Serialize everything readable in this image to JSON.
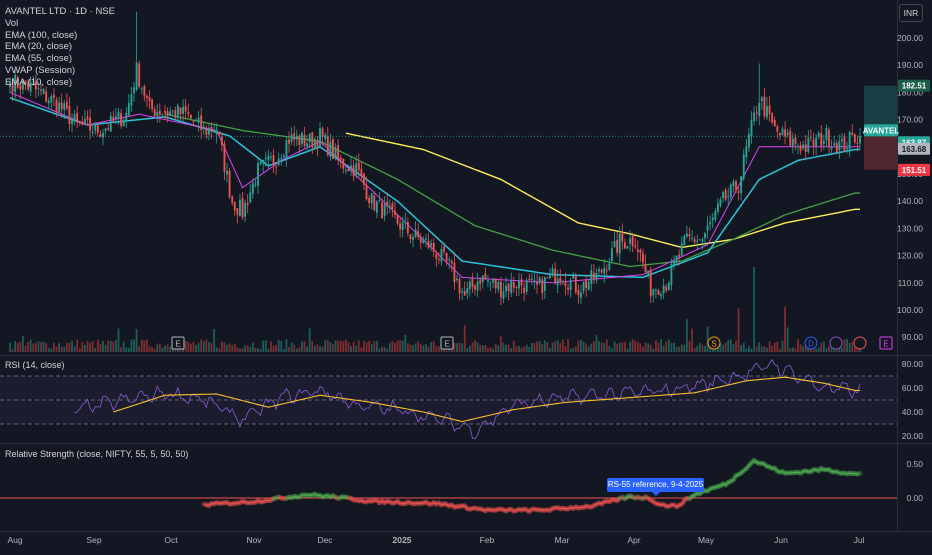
{
  "header": {
    "title": "AVANTEL LTD · 1D · NSE",
    "legend": [
      "Vol",
      "EMA (100, close)",
      "EMA (20, close)",
      "EMA (55, close)",
      "VWAP (Session)",
      "EMA (10, close)"
    ],
    "currency": "INR"
  },
  "rsi": {
    "title": "RSI (14, close)"
  },
  "rs": {
    "title": "Relative Strength (close, NIFTY, 55, 5, 50, 50)",
    "tooltip": "RS-55 reference, 9-4-2025"
  },
  "colors": {
    "background": "#131722",
    "up": "#26a69a",
    "down": "#ef5350",
    "ema10": "#e040fb",
    "ema20": "#26c6da",
    "ema55": "#43a047",
    "ema100": "#ffee58",
    "rsi_line": "#7e57c2",
    "rsi_ma": "#fbc02d",
    "rs_line": "#ef5350",
    "rs_line_positive": "#4caf50",
    "badge_current": "#26a69a",
    "badge_ema20": "#b2b5be",
    "badge_target": "#1b5e4a",
    "badge_stop": "#f23645"
  },
  "chart_data": [
    {
      "type": "candlestick",
      "symbol": "AVANTEL LTD",
      "interval": "1D",
      "exchange": "NSE",
      "x_ticks": [
        "Aug",
        "Sep",
        "Oct",
        "Nov",
        "Dec",
        "2025",
        "Feb",
        "Mar",
        "Apr",
        "May",
        "Jun",
        "Jul"
      ],
      "ylim": [
        85,
        205
      ],
      "y_ticks": [
        "200.00",
        "190.00",
        "180.00",
        "170.00",
        "160.00",
        "150.00",
        "140.00",
        "130.00",
        "120.00",
        "110.00",
        "100.00",
        "90.00"
      ],
      "price_badges": [
        {
          "label": "182.51",
          "kind": "target"
        },
        {
          "label": "AVANTEL",
          "kind": "current"
        },
        {
          "label": "163.87",
          "kind": "current"
        },
        {
          "label": "163.68",
          "kind": "ema20"
        },
        {
          "label": "151.51",
          "kind": "stop"
        }
      ],
      "last_close": 163.87,
      "risk_reward": {
        "entry": 163.87,
        "target": 182.51,
        "stop": 151.51
      },
      "anchors": [
        [
          0,
          184
        ],
        [
          8,
          182
        ],
        [
          18,
          176
        ],
        [
          26,
          168
        ],
        [
          35,
          166
        ],
        [
          45,
          172
        ],
        [
          49,
          188
        ],
        [
          54,
          174
        ],
        [
          60,
          173
        ],
        [
          68,
          172
        ],
        [
          75,
          166
        ],
        [
          80,
          167
        ],
        [
          86,
          140
        ],
        [
          90,
          136
        ],
        [
          96,
          151
        ],
        [
          103,
          156
        ],
        [
          108,
          163
        ],
        [
          116,
          162
        ],
        [
          120,
          164
        ],
        [
          128,
          154
        ],
        [
          134,
          152
        ],
        [
          140,
          140
        ],
        [
          148,
          134
        ],
        [
          155,
          128
        ],
        [
          162,
          124
        ],
        [
          170,
          116
        ],
        [
          176,
          105
        ],
        [
          182,
          112
        ],
        [
          190,
          108
        ],
        [
          196,
          110
        ],
        [
          204,
          108
        ],
        [
          212,
          114
        ],
        [
          220,
          108
        ],
        [
          228,
          113
        ],
        [
          236,
          125
        ],
        [
          242,
          126
        ],
        [
          248,
          108
        ],
        [
          254,
          110
        ],
        [
          262,
          126
        ],
        [
          268,
          126
        ],
        [
          276,
          140
        ],
        [
          282,
          146
        ],
        [
          286,
          163
        ],
        [
          290,
          178
        ],
        [
          296,
          166
        ],
        [
          302,
          162
        ],
        [
          308,
          160
        ],
        [
          316,
          164
        ],
        [
          322,
          160
        ],
        [
          327,
          163.87
        ]
      ],
      "ema_anchors": {
        "ema10": [
          [
            0,
            180
          ],
          [
            30,
            168
          ],
          [
            50,
            172
          ],
          [
            80,
            166
          ],
          [
            90,
            145
          ],
          [
            105,
            155
          ],
          [
            120,
            162
          ],
          [
            150,
            135
          ],
          [
            175,
            112
          ],
          [
            210,
            110
          ],
          [
            245,
            113
          ],
          [
            270,
            124
          ],
          [
            290,
            160
          ],
          [
            305,
            160
          ],
          [
            327,
            160
          ]
        ],
        "ema20": [
          [
            0,
            178
          ],
          [
            30,
            168
          ],
          [
            60,
            171
          ],
          [
            85,
            164
          ],
          [
            100,
            153
          ],
          [
            120,
            160
          ],
          [
            150,
            140
          ],
          [
            175,
            118
          ],
          [
            210,
            113
          ],
          [
            245,
            112
          ],
          [
            270,
            121
          ],
          [
            290,
            148
          ],
          [
            305,
            155
          ],
          [
            327,
            159
          ]
        ],
        "ema55": [
          [
            60,
            172
          ],
          [
            90,
            166
          ],
          [
            120,
            162
          ],
          [
            150,
            148
          ],
          [
            180,
            131
          ],
          [
            210,
            122
          ],
          [
            240,
            116
          ],
          [
            260,
            118
          ],
          [
            280,
            126
          ],
          [
            300,
            135
          ],
          [
            327,
            143
          ]
        ],
        "ema100": [
          [
            130,
            165
          ],
          [
            160,
            159
          ],
          [
            190,
            148
          ],
          [
            220,
            132
          ],
          [
            240,
            128
          ],
          [
            260,
            123
          ],
          [
            280,
            126
          ],
          [
            300,
            132
          ],
          [
            327,
            137
          ]
        ]
      },
      "volume_markers": [
        "E",
        "E",
        "S",
        "D",
        "E"
      ]
    },
    {
      "type": "line",
      "title": "RSI (14, close)",
      "ylim": [
        15,
        90
      ],
      "y_ticks": [
        "80.00",
        "60.00",
        "40.00",
        "20.00"
      ],
      "bands": [
        70,
        50,
        30
      ],
      "series": [
        {
          "name": "RSI",
          "anchors": [
            [
              25,
              42
            ],
            [
              40,
              48
            ],
            [
              60,
              56
            ],
            [
              75,
              50
            ],
            [
              90,
              34
            ],
            [
              105,
              52
            ],
            [
              120,
              58
            ],
            [
              135,
              45
            ],
            [
              150,
              42
            ],
            [
              170,
              32
            ],
            [
              180,
              24
            ],
            [
              195,
              46
            ],
            [
              215,
              52
            ],
            [
              240,
              56
            ],
            [
              255,
              58
            ],
            [
              270,
              64
            ],
            [
              285,
              72
            ],
            [
              295,
              80
            ],
            [
              305,
              70
            ],
            [
              315,
              60
            ],
            [
              327,
              58
            ]
          ]
        },
        {
          "name": "RSI-based MA",
          "anchors": [
            [
              40,
              40
            ],
            [
              60,
              54
            ],
            [
              80,
              55
            ],
            [
              100,
              44
            ],
            [
              120,
              54
            ],
            [
              140,
              48
            ],
            [
              160,
              40
            ],
            [
              175,
              32
            ],
            [
              195,
              42
            ],
            [
              215,
              48
            ],
            [
              240,
              52
            ],
            [
              265,
              56
            ],
            [
              285,
              66
            ],
            [
              300,
              69
            ],
            [
              315,
              64
            ],
            [
              327,
              58
            ]
          ]
        }
      ]
    },
    {
      "type": "line",
      "title": "Relative Strength (close, NIFTY, 55, 5, 50, 50)",
      "ylim": [
        -0.35,
        0.75
      ],
      "y_ticks": [
        "0.50",
        "0.00"
      ],
      "zero_line": 0,
      "series": [
        {
          "name": "RS",
          "anchors": [
            [
              75,
              -0.1
            ],
            [
              95,
              -0.05
            ],
            [
              115,
              0.05
            ],
            [
              125,
              0.02
            ],
            [
              140,
              -0.05
            ],
            [
              165,
              -0.08
            ],
            [
              185,
              -0.18
            ],
            [
              205,
              -0.18
            ],
            [
              225,
              -0.12
            ],
            [
              240,
              0.02
            ],
            [
              247,
              0.0
            ],
            [
              252,
              -0.1
            ],
            [
              258,
              -0.12
            ],
            [
              265,
              0.05
            ],
            [
              278,
              0.22
            ],
            [
              288,
              0.55
            ],
            [
              300,
              0.36
            ],
            [
              315,
              0.42
            ],
            [
              327,
              0.35
            ]
          ]
        }
      ]
    }
  ]
}
